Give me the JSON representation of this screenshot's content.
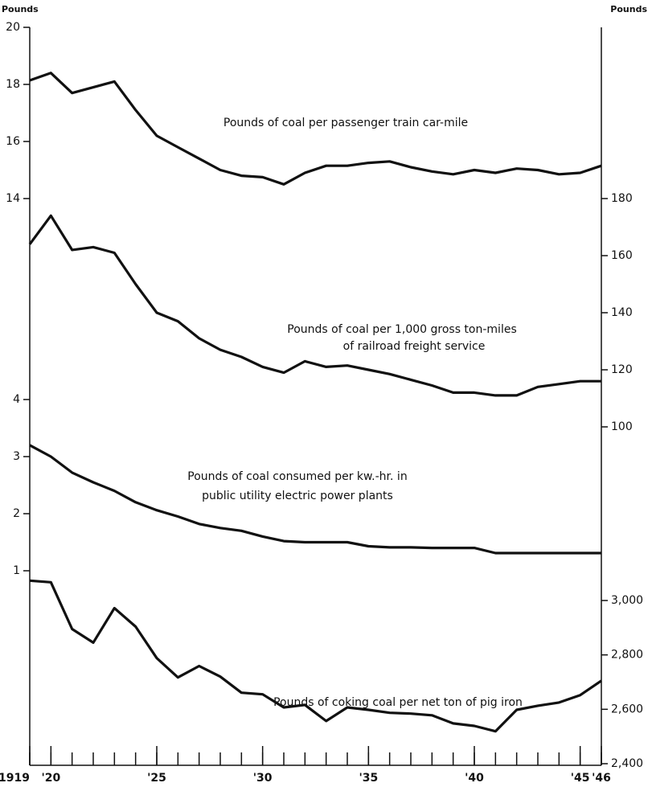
{
  "chart_data": [
    {
      "type": "line",
      "axis": "y",
      "ylabel": "Pounds",
      "color": "#111111",
      "annotation": [
        "Pounds of coal per passenger train car-mile"
      ],
      "x": [
        1919,
        1920,
        1921,
        1922,
        1923,
        1924,
        1925,
        1926,
        1927,
        1928,
        1929,
        1930,
        1931,
        1932,
        1933,
        1934,
        1935,
        1936,
        1937,
        1938,
        1939,
        1940,
        1941,
        1942,
        1943,
        1944,
        1945,
        1946
      ],
      "values": [
        18.14,
        18.4,
        17.7,
        17.9,
        18.1,
        17.1,
        16.2,
        15.8,
        15.4,
        15.0,
        14.8,
        14.75,
        14.5,
        14.9,
        15.15,
        15.15,
        15.25,
        15.3,
        15.1,
        14.95,
        14.85,
        15.0,
        14.9,
        15.05,
        15.0,
        14.85,
        14.9,
        15.15
      ],
      "ylim": [
        14,
        20
      ],
      "yticks": [
        14,
        16,
        18,
        20
      ]
    },
    {
      "type": "line",
      "axis": "y2",
      "ylabel": "Pounds",
      "color": "#111111",
      "annotation": [
        "Pounds of coal per 1,000 gross ton-miles",
        "of railroad freight service"
      ],
      "x": [
        1919,
        1920,
        1921,
        1922,
        1923,
        1924,
        1925,
        1926,
        1927,
        1928,
        1929,
        1930,
        1931,
        1932,
        1933,
        1934,
        1935,
        1936,
        1937,
        1938,
        1939,
        1940,
        1941,
        1942,
        1943,
        1944,
        1945,
        1946
      ],
      "values": [
        164,
        174,
        162,
        163,
        161,
        150,
        140,
        137,
        131,
        127,
        124.5,
        121,
        119,
        123,
        121,
        121.5,
        120,
        118.5,
        116.5,
        114.5,
        112,
        112,
        111,
        111,
        114,
        115,
        116,
        116
      ],
      "ylim": [
        100,
        180
      ],
      "yticks": [
        100,
        120,
        140,
        160,
        180
      ]
    },
    {
      "type": "line",
      "axis": "y",
      "color": "#111111",
      "annotation": [
        "Pounds of coal consumed per kw.-hr. in",
        "public utility electric power plants"
      ],
      "x": [
        1919,
        1920,
        1921,
        1922,
        1923,
        1924,
        1925,
        1926,
        1927,
        1928,
        1929,
        1930,
        1931,
        1932,
        1933,
        1934,
        1935,
        1936,
        1937,
        1938,
        1939,
        1940,
        1941,
        1942,
        1943,
        1944,
        1945,
        1946
      ],
      "values": [
        3.2,
        3.0,
        2.72,
        2.55,
        2.4,
        2.2,
        2.06,
        1.95,
        1.82,
        1.75,
        1.7,
        1.6,
        1.52,
        1.5,
        1.5,
        1.5,
        1.43,
        1.41,
        1.41,
        1.4,
        1.4,
        1.4,
        1.31,
        1.31,
        1.31,
        1.31,
        1.31,
        1.31
      ],
      "ylim": [
        1,
        4
      ],
      "yticks": [
        1,
        2,
        3,
        4
      ]
    },
    {
      "type": "line",
      "axis": "y2",
      "color": "#111111",
      "annotation": [
        "Pounds of coking coal per net ton of pig iron"
      ],
      "x": [
        1919,
        1920,
        1921,
        1922,
        1923,
        1924,
        1925,
        1926,
        1927,
        1928,
        1929,
        1930,
        1931,
        1932,
        1933,
        1934,
        1935,
        1936,
        1937,
        1938,
        1939,
        1940,
        1941,
        1942,
        1943,
        1944,
        1945,
        1946
      ],
      "values": [
        3073,
        3067,
        2895,
        2845,
        2972,
        2904,
        2788,
        2717,
        2759,
        2720,
        2661,
        2655,
        2607,
        2616,
        2557,
        2607,
        2598,
        2587,
        2584,
        2578,
        2548,
        2539,
        2519,
        2598,
        2613,
        2625,
        2652,
        2705
      ],
      "ylim": [
        2400,
        3000
      ],
      "yticks": [
        {
          "value": 2400,
          "label": "2,400"
        },
        {
          "value": 2600,
          "label": "2,600"
        },
        {
          "value": 2800,
          "label": "2,800"
        },
        {
          "value": 3000,
          "label": "3,000"
        }
      ],
      "xlim": [
        1919,
        1946
      ],
      "xticks": [
        {
          "value": 1919,
          "label": "1919"
        },
        {
          "value": 1920,
          "label": "'20"
        },
        {
          "value": 1925,
          "label": "'25"
        },
        {
          "value": 1930,
          "label": "'30"
        },
        {
          "value": 1935,
          "label": "'35"
        },
        {
          "value": 1940,
          "label": "'40"
        },
        {
          "value": 1945,
          "label": "'45"
        },
        {
          "value": 1946,
          "label": "'46"
        }
      ]
    }
  ]
}
